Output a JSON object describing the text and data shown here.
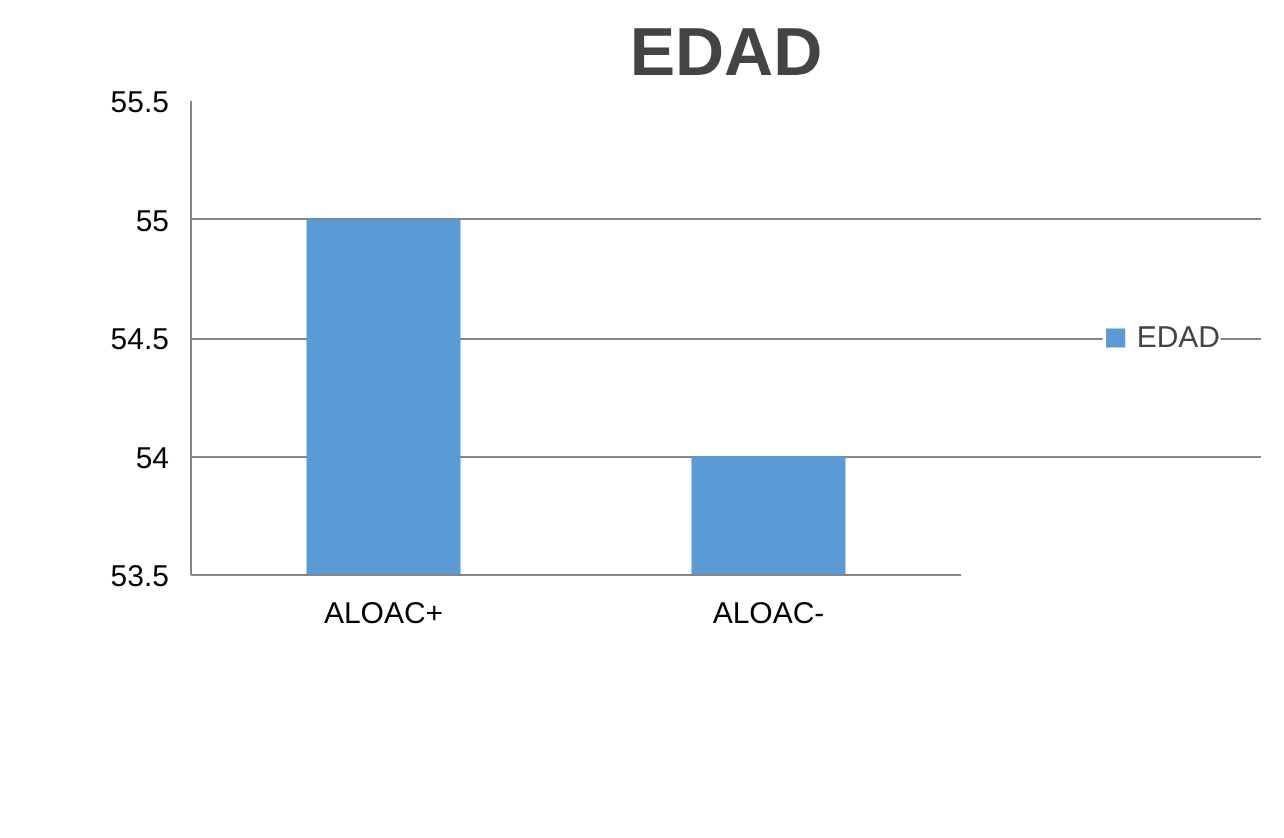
{
  "chart_data": {
    "type": "bar",
    "title": "EDAD",
    "categories": [
      "ALOAC+",
      "ALOAC-"
    ],
    "series": [
      {
        "name": "EDAD",
        "color": "#5b9bd5",
        "values": [
          55,
          54
        ]
      }
    ],
    "ylim": [
      53.5,
      55.5
    ],
    "yticks": [
      53.5,
      54,
      54.5,
      55,
      55.5
    ],
    "grid": "y",
    "legend": "right"
  }
}
